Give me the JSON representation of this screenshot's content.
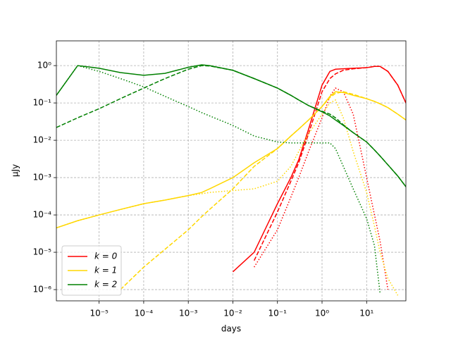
{
  "chart_data": {
    "type": "line",
    "xlabel": "days",
    "ylabel": "μJy",
    "xscale": "log",
    "yscale": "log",
    "grid": true,
    "legend": "lower left",
    "xlim": [
      1.1e-06,
      76
    ],
    "ylim": [
      5e-07,
      4.6
    ],
    "xticks": [
      {
        "value": 1e-05,
        "label": "10⁻⁵"
      },
      {
        "value": 0.0001,
        "label": "10⁻⁴"
      },
      {
        "value": 0.001,
        "label": "10⁻³"
      },
      {
        "value": 0.01,
        "label": "10⁻²"
      },
      {
        "value": 0.1,
        "label": "10⁻¹"
      },
      {
        "value": 1,
        "label": "10⁰"
      },
      {
        "value": 10,
        "label": "10¹"
      }
    ],
    "yticks": [
      {
        "value": 1e-06,
        "label": "10⁻⁶"
      },
      {
        "value": 1e-05,
        "label": "10⁻⁵"
      },
      {
        "value": 0.0001,
        "label": "10⁻⁴"
      },
      {
        "value": 0.001,
        "label": "10⁻³"
      },
      {
        "value": 0.01,
        "label": "10⁻²"
      },
      {
        "value": 0.1,
        "label": "10⁻¹"
      },
      {
        "value": 1,
        "label": "10⁰"
      }
    ],
    "x": [
      1.1e-06,
      3.3e-06,
      1e-05,
      3e-05,
      0.0001,
      0.0003,
      0.001,
      0.002,
      0.003,
      0.01,
      0.03,
      0.1,
      0.2,
      0.3,
      0.5,
      1,
      1.5,
      2,
      3,
      5,
      10,
      15,
      20,
      30,
      50,
      76
    ],
    "series": [
      {
        "name": "k = 0",
        "color": "red",
        "lines": [
          {
            "style": "solid",
            "values": [
              null,
              null,
              null,
              null,
              null,
              null,
              null,
              null,
              null,
              3e-06,
              1e-05,
              0.0002,
              0.001,
              0.003,
              0.02,
              0.3,
              0.7,
              0.8,
              0.82,
              0.85,
              0.88,
              0.95,
              0.95,
              0.7,
              0.3,
              0.1
            ]
          },
          {
            "style": "dashed",
            "values": [
              null,
              null,
              null,
              null,
              null,
              null,
              null,
              null,
              null,
              null,
              6e-06,
              0.00012,
              0.0008,
              0.0025,
              0.015,
              0.2,
              0.45,
              0.6,
              0.75,
              0.82,
              0.88,
              0.95,
              0.95,
              0.7,
              0.3,
              0.1
            ]
          },
          {
            "style": "dotted",
            "values": [
              null,
              null,
              null,
              null,
              null,
              null,
              null,
              null,
              null,
              null,
              4e-06,
              4e-05,
              0.0003,
              0.001,
              0.005,
              0.04,
              0.15,
              0.25,
              0.2,
              0.05,
              0.001,
              0.0001,
              2e-05,
              1e-06,
              null,
              null
            ]
          }
        ]
      },
      {
        "name": "k = 1",
        "color": "gold",
        "lines": [
          {
            "style": "solid",
            "values": [
              4.5e-05,
              7e-05,
              0.0001,
              0.00014,
              0.0002,
              0.00025,
              0.00033,
              0.0004,
              0.0005,
              0.001,
              0.0025,
              0.006,
              0.013,
              0.02,
              0.035,
              0.08,
              0.15,
              0.2,
              0.19,
              0.16,
              0.13,
              0.11,
              0.095,
              0.075,
              0.05,
              0.035
            ]
          },
          {
            "style": "dashed",
            "values": [
              null,
              null,
              null,
              1e-06,
              4e-06,
              1.2e-05,
              4e-05,
              9e-05,
              0.00014,
              0.0005,
              0.002,
              0.006,
              0.013,
              0.02,
              0.035,
              0.08,
              0.14,
              0.18,
              0.2,
              0.17,
              0.13,
              0.11,
              0.095,
              0.075,
              0.05,
              0.035
            ]
          },
          {
            "style": "dotted",
            "values": [
              4.5e-05,
              7e-05,
              0.0001,
              0.00014,
              0.0002,
              0.00025,
              0.00033,
              0.00037,
              0.0004,
              0.00045,
              0.0005,
              0.0008,
              0.002,
              0.005,
              0.015,
              0.05,
              0.1,
              0.12,
              0.04,
              0.005,
              0.0004,
              5e-05,
              1e-05,
              2e-06,
              7e-07,
              null
            ]
          }
        ]
      },
      {
        "name": "k = 2",
        "color": "green",
        "lines": [
          {
            "style": "solid",
            "values": [
              0.16,
              1.0,
              0.85,
              0.65,
              0.55,
              0.62,
              0.9,
              1.05,
              1.0,
              0.75,
              0.45,
              0.25,
              0.16,
              0.12,
              0.085,
              0.058,
              0.045,
              0.035,
              0.025,
              0.016,
              0.009,
              0.0055,
              0.0038,
              0.0022,
              0.0011,
              0.00057
            ]
          },
          {
            "style": "dashed",
            "values": [
              0.022,
              0.04,
              0.07,
              0.13,
              0.25,
              0.45,
              0.8,
              1.0,
              0.98,
              0.75,
              0.45,
              0.25,
              0.16,
              0.12,
              0.085,
              0.06,
              0.05,
              0.04,
              0.026,
              0.016,
              0.009,
              0.0055,
              0.0038,
              0.0022,
              0.0011,
              0.00057
            ]
          },
          {
            "style": "dotted",
            "values": [
              0.16,
              1.0,
              0.7,
              0.45,
              0.27,
              0.15,
              0.08,
              0.055,
              0.045,
              0.025,
              0.013,
              0.009,
              0.0085,
              0.0085,
              0.0085,
              0.0085,
              0.0085,
              0.006,
              0.002,
              0.0005,
              8e-05,
              1.5e-05,
              8e-07,
              null,
              null,
              null
            ]
          }
        ]
      }
    ]
  }
}
